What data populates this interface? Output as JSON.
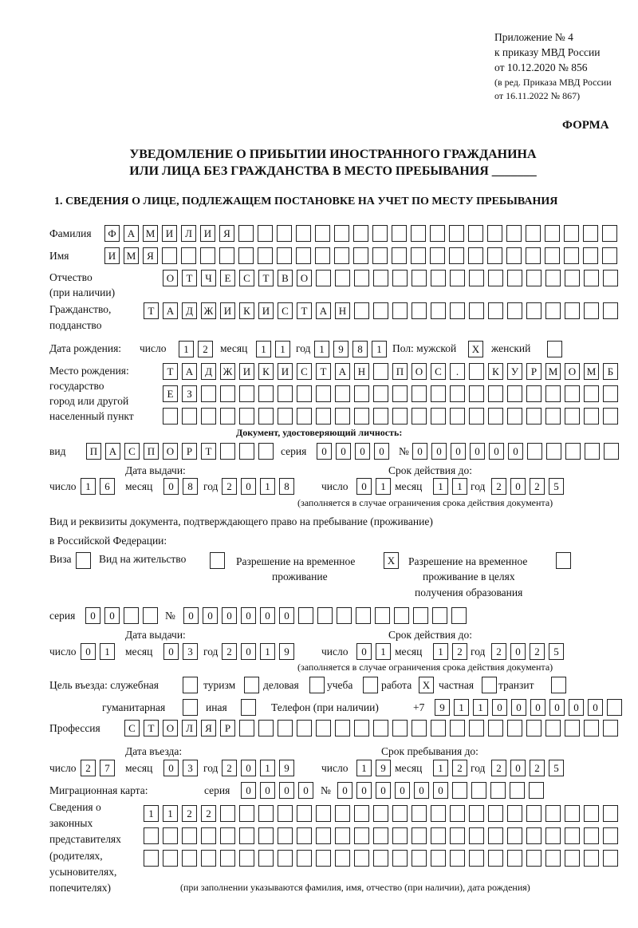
{
  "header": {
    "appendix": [
      "Приложение № 4",
      "к приказу МВД России",
      "от 10.12.2020 № 856"
    ],
    "edition": [
      "(в ред. Приказа МВД России",
      "от 16.11.2022 № 867)"
    ],
    "forma": "ФОРМА",
    "title1": "УВЕДОМЛЕНИЕ О ПРИБЫТИИ ИНОСТРАННОГО ГРАЖДАНИНА",
    "title2": "ИЛИ ЛИЦА БЕЗ ГРАЖДАНСТВА В МЕСТО ПРЕБЫВАНИЯ _______",
    "section1": "1. СВЕДЕНИЯ О ЛИЦЕ, ПОДЛЕЖАЩЕМ ПОСТАНОВКЕ НА УЧЕТ ПО МЕСТУ ПРЕБЫВАНИЯ"
  },
  "labels": {
    "familia": "Фамилия",
    "imya": "Имя",
    "otchestvo": "Отчество",
    "otchestvo2": "(при наличии)",
    "grazhd": "Гражданство,",
    "grazhd2": "подданство",
    "dob": "Дата рождения:",
    "chislo": "число",
    "mesyac": "месяц",
    "god": "год",
    "pol": "Пол: мужской",
    "female": "женский",
    "birthplace": [
      "Место рождения:",
      "государство",
      "город или другой",
      "населенный пункт"
    ],
    "doc_title": "Документ, удостоверяющий личность:",
    "vid": "вид",
    "seriya": "серия",
    "num": "№",
    "issue_date": "Дата выдачи:",
    "valid_until": "Срок действия до:",
    "valid_note": "(заполняется в случае ограничения срока действия документа)",
    "right_doc1": "Вид и реквизиты документа, подтверждающего право на пребывание (проживание)",
    "right_doc2": "в Российской Федерации:",
    "visa": "Виза",
    "vnzh": "Вид на жительство",
    "rvp": [
      "Разрешение на временное",
      "проживание"
    ],
    "rvp_edu": [
      "Разрешение на временное",
      "проживание в целях",
      "получения образования"
    ],
    "purpose": "Цель въезда: служебная",
    "tourism": "туризм",
    "business": "деловая",
    "study": "учеба",
    "work": "работа",
    "private": "частная",
    "transit": "транзит",
    "humanitarian": "гуманитарная",
    "other": "иная",
    "phone": "Телефон (при наличии)",
    "phone_prefix": "+7",
    "profession": "Профессия",
    "entry_date": "Дата въезда:",
    "stay_until": "Срок пребывания до:",
    "migcard": "Миграционная карта:",
    "reps": [
      "Сведения о",
      "законных",
      "представителях",
      "(родителях,",
      "усыновителях,",
      "попечителях)"
    ],
    "reps_note": "(при заполнении указываются фамилия, имя, отчество (при наличии), дата рождения)"
  },
  "fields": {
    "familia": "ФАМИЛИЯ",
    "imya": "ИМЯ",
    "otchestvo": "ОТЧЕСТВО",
    "grazhd": "ТАДЖИКИСТАН",
    "dob_day": "12",
    "dob_month": "11",
    "dob_year": "1981",
    "sex_male": "X",
    "sex_female": "",
    "birthplace_1": "ТАДЖИКИСТАН ПОС. КУРМОМБ",
    "birthplace_2": "ЕЗ",
    "birthplace_3": "",
    "doc_type": "ПАСПОРТ",
    "doc_series": "0000",
    "doc_number": "000000",
    "doc_issue_day": "16",
    "doc_issue_month": "08",
    "doc_issue_year": "2018",
    "doc_valid_day": "01",
    "doc_valid_month": "11",
    "doc_valid_year": "2025",
    "visa": "",
    "vnzh": "",
    "rvp": "X",
    "rvp_edu": "",
    "right_series": "00",
    "right_number": "000000",
    "right_issue_day": "01",
    "right_issue_month": "03",
    "right_issue_year": "2019",
    "right_valid_day": "01",
    "right_valid_month": "12",
    "right_valid_year": "2025",
    "p_service": "",
    "p_tourism": "",
    "p_business": "",
    "p_study": "",
    "p_work": "X",
    "p_private": "",
    "p_transit": "",
    "p_humanitarian": "",
    "p_other": "",
    "phone": "911000000",
    "profession": "СТОЛЯР",
    "entry_day": "27",
    "entry_month": "03",
    "entry_year": "2019",
    "stay_day": "19",
    "stay_month": "12",
    "stay_year": "2025",
    "mig_series": "0000",
    "mig_number": "000000",
    "reps_1": "1122",
    "reps_2": "",
    "reps_3": ""
  }
}
